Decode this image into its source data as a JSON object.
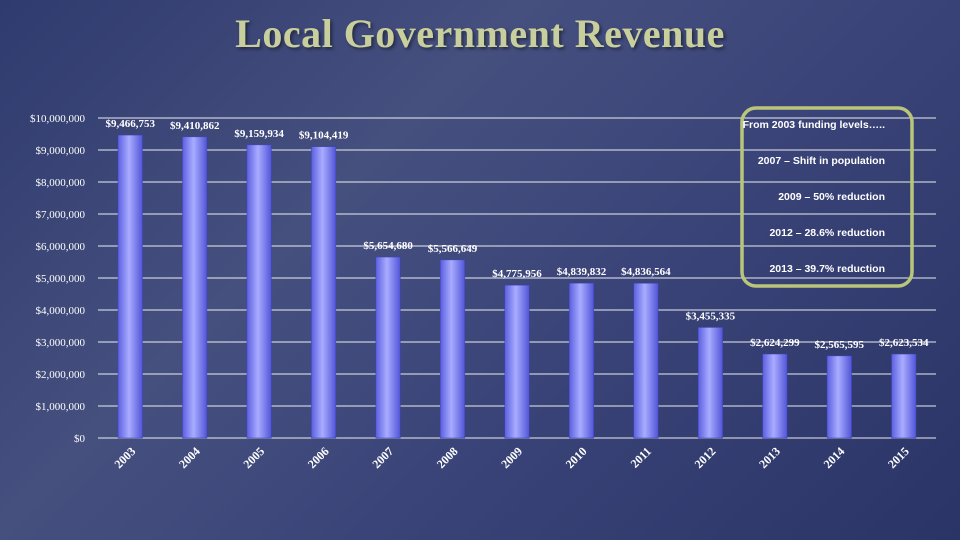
{
  "title": "Local Government Revenue",
  "chart_data": {
    "type": "bar",
    "categories": [
      "2003",
      "2004",
      "2005",
      "2006",
      "2007",
      "2008",
      "2009",
      "2010",
      "2011",
      "2012",
      "2013",
      "2014",
      "2015"
    ],
    "values": [
      9466753,
      9410862,
      9159934,
      9104419,
      5654680,
      5566649,
      4775956,
      4839832,
      4836564,
      3455335,
      2624299,
      2565595,
      2623534
    ],
    "data_labels": [
      "$9,466,753",
      "$9,410,862",
      "$9,159,934",
      "$9,104,419",
      "$5,654,680",
      "$5,566,649",
      "$4,775,956",
      "$4,839,832",
      "$4,836,564",
      "$3,455,335",
      "$2,624,299",
      "$2,565,595",
      "$2,623,534"
    ],
    "y_ticks": [
      "$0",
      "$1,000,000",
      "$2,000,000",
      "$3,000,000",
      "$4,000,000",
      "$5,000,000",
      "$6,000,000",
      "$7,000,000",
      "$8,000,000",
      "$9,000,000",
      "$10,000,000"
    ],
    "ylim": [
      0,
      10000000
    ],
    "grid": true,
    "bar_color": "#7b7ff0",
    "annotations": [
      "From 2003 funding levels…..",
      "2007 – Shift in population",
      "2009 – 50% reduction",
      "2012 – 28.6% reduction",
      "2013 – 39.7% reduction"
    ],
    "annotation_box_color": "#b9c57a"
  }
}
